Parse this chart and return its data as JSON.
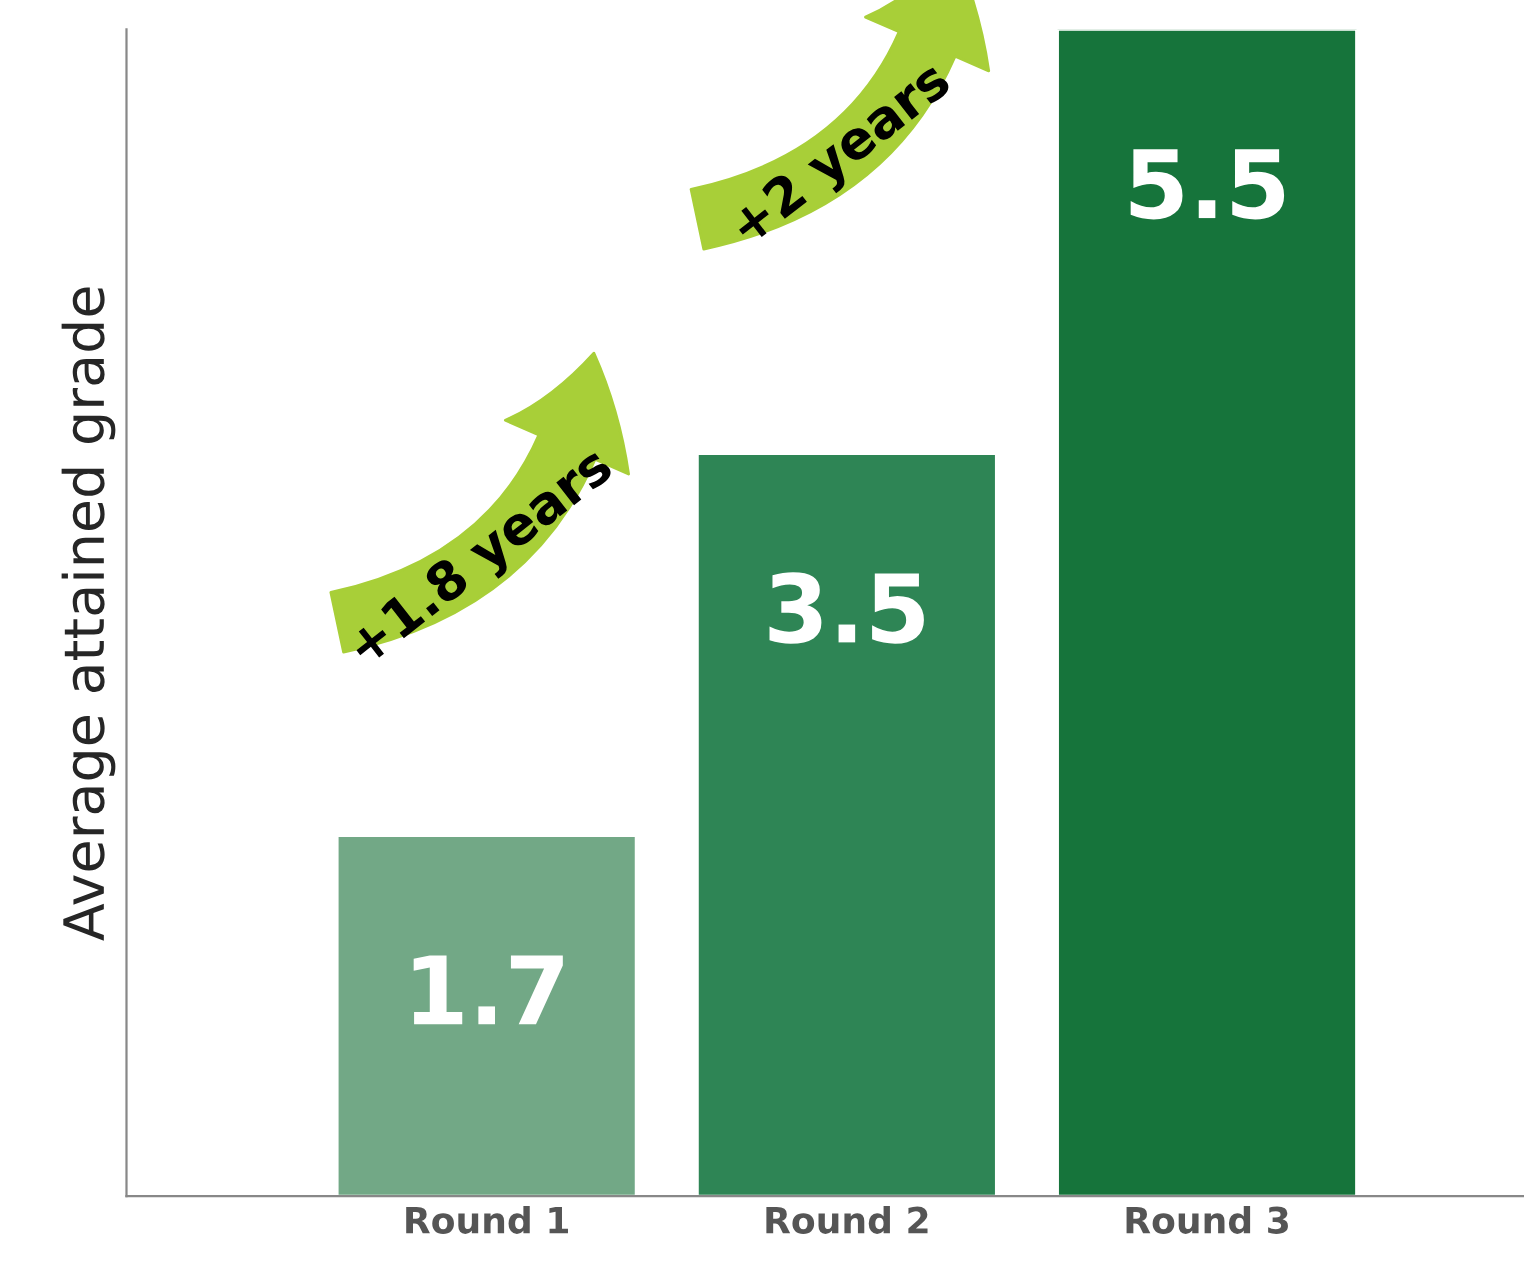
{
  "chart_data": {
    "type": "bar",
    "ylabel": "Average attained grade",
    "categories": [
      "Round 1",
      "Round 2",
      "Round 3"
    ],
    "values": [
      1.7,
      3.5,
      5.5
    ],
    "colors": [
      "#72a886",
      "#2e8555",
      "#16743b"
    ],
    "ylim": [
      0,
      5.5
    ],
    "tick_labels": "x",
    "data_labels": true,
    "grid": false,
    "legend": false,
    "annotations": [
      "+1.8 years",
      "+2 years"
    ]
  }
}
